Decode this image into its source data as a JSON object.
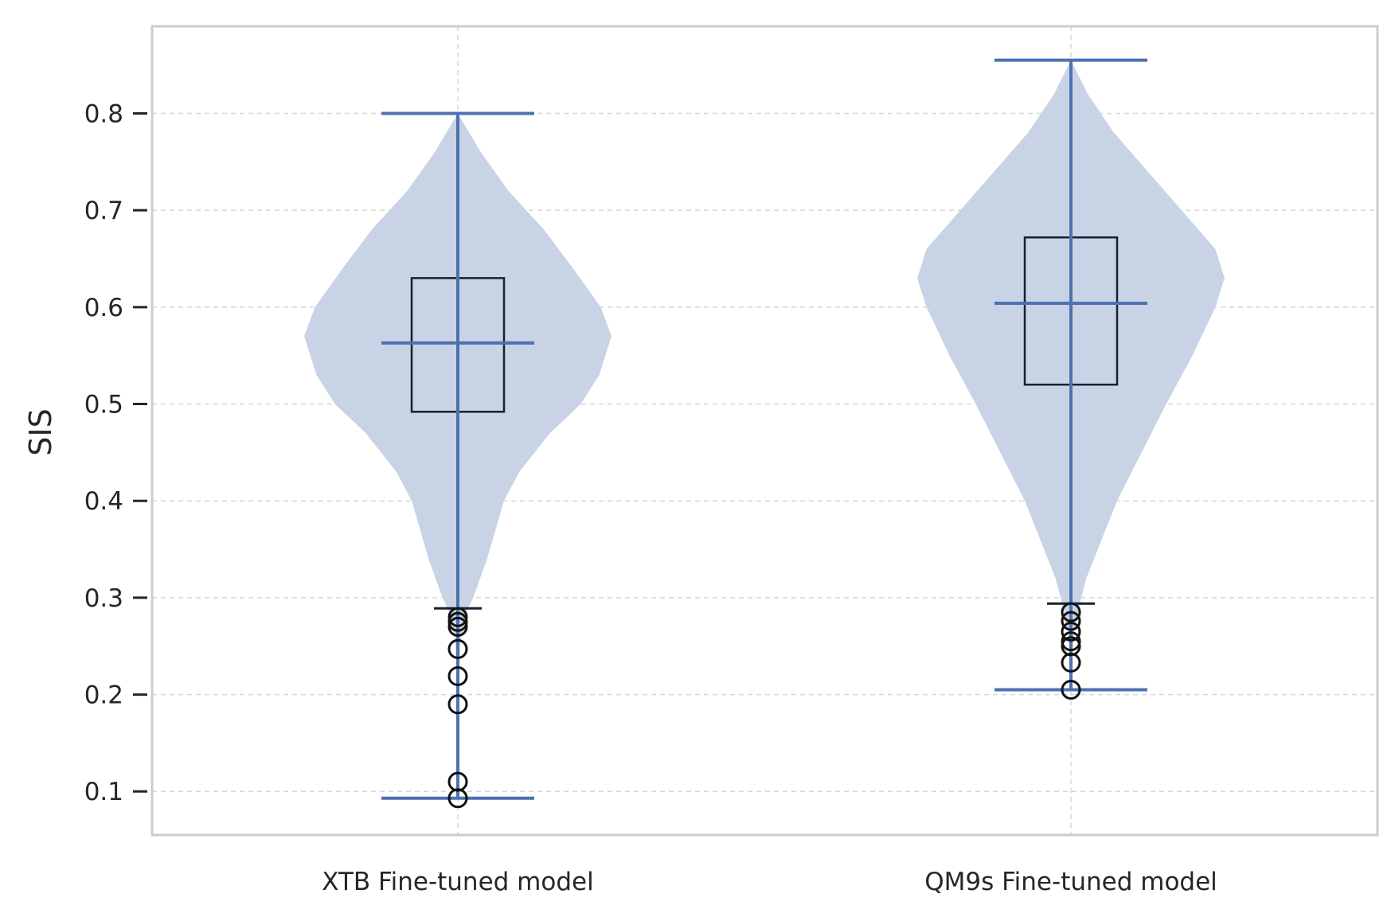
{
  "chart_data": {
    "type": "violin",
    "ylabel": "SIS",
    "xlabel": "",
    "ylim": [
      0.055,
      0.89
    ],
    "yticks": [
      0.1,
      0.2,
      0.3,
      0.4,
      0.5,
      0.6,
      0.7,
      0.8
    ],
    "ytick_labels": [
      "0.1",
      "0.2",
      "0.3",
      "0.4",
      "0.5",
      "0.6",
      "0.7",
      "0.8"
    ],
    "grid": true,
    "categories": [
      "XTB Fine-tuned model",
      "QM9s Fine-tuned model"
    ],
    "series": [
      {
        "category": "XTB Fine-tuned model",
        "min": 0.093,
        "max": 0.8,
        "mean": 0.563,
        "box": {
          "q1": 0.492,
          "q3": 0.63,
          "whisker_low": 0.289
        },
        "outliers": [
          0.093,
          0.11,
          0.19,
          0.219,
          0.247,
          0.27,
          0.275,
          0.28
        ],
        "density": [
          [
            0.093,
            0.0
          ],
          [
            0.2,
            0.005
          ],
          [
            0.25,
            0.015
          ],
          [
            0.28,
            0.04
          ],
          [
            0.3,
            0.1
          ],
          [
            0.34,
            0.19
          ],
          [
            0.4,
            0.3
          ],
          [
            0.43,
            0.4
          ],
          [
            0.47,
            0.6
          ],
          [
            0.5,
            0.8
          ],
          [
            0.53,
            0.92
          ],
          [
            0.57,
            1.0
          ],
          [
            0.6,
            0.93
          ],
          [
            0.64,
            0.75
          ],
          [
            0.68,
            0.56
          ],
          [
            0.72,
            0.33
          ],
          [
            0.76,
            0.15
          ],
          [
            0.8,
            0.0
          ]
        ]
      },
      {
        "category": "QM9s Fine-tuned model",
        "min": 0.205,
        "max": 0.855,
        "mean": 0.604,
        "box": {
          "q1": 0.52,
          "q3": 0.672,
          "whisker_low": 0.294
        },
        "outliers": [
          0.205,
          0.233,
          0.25,
          0.255,
          0.265,
          0.276,
          0.285
        ],
        "density": [
          [
            0.205,
            0.0
          ],
          [
            0.26,
            0.015
          ],
          [
            0.29,
            0.05
          ],
          [
            0.32,
            0.1
          ],
          [
            0.36,
            0.2
          ],
          [
            0.4,
            0.3
          ],
          [
            0.45,
            0.46
          ],
          [
            0.5,
            0.62
          ],
          [
            0.55,
            0.79
          ],
          [
            0.6,
            0.94
          ],
          [
            0.63,
            1.0
          ],
          [
            0.66,
            0.94
          ],
          [
            0.7,
            0.72
          ],
          [
            0.74,
            0.5
          ],
          [
            0.78,
            0.28
          ],
          [
            0.82,
            0.11
          ],
          [
            0.855,
            0.0
          ]
        ]
      }
    ],
    "colors": {
      "violin_fill": "#c9d3e6",
      "stat_line": "#4c72b0",
      "box_edge": "#17202e",
      "grid": "#d7d7d7",
      "frame": "#cccccc",
      "text": "#262626"
    }
  }
}
